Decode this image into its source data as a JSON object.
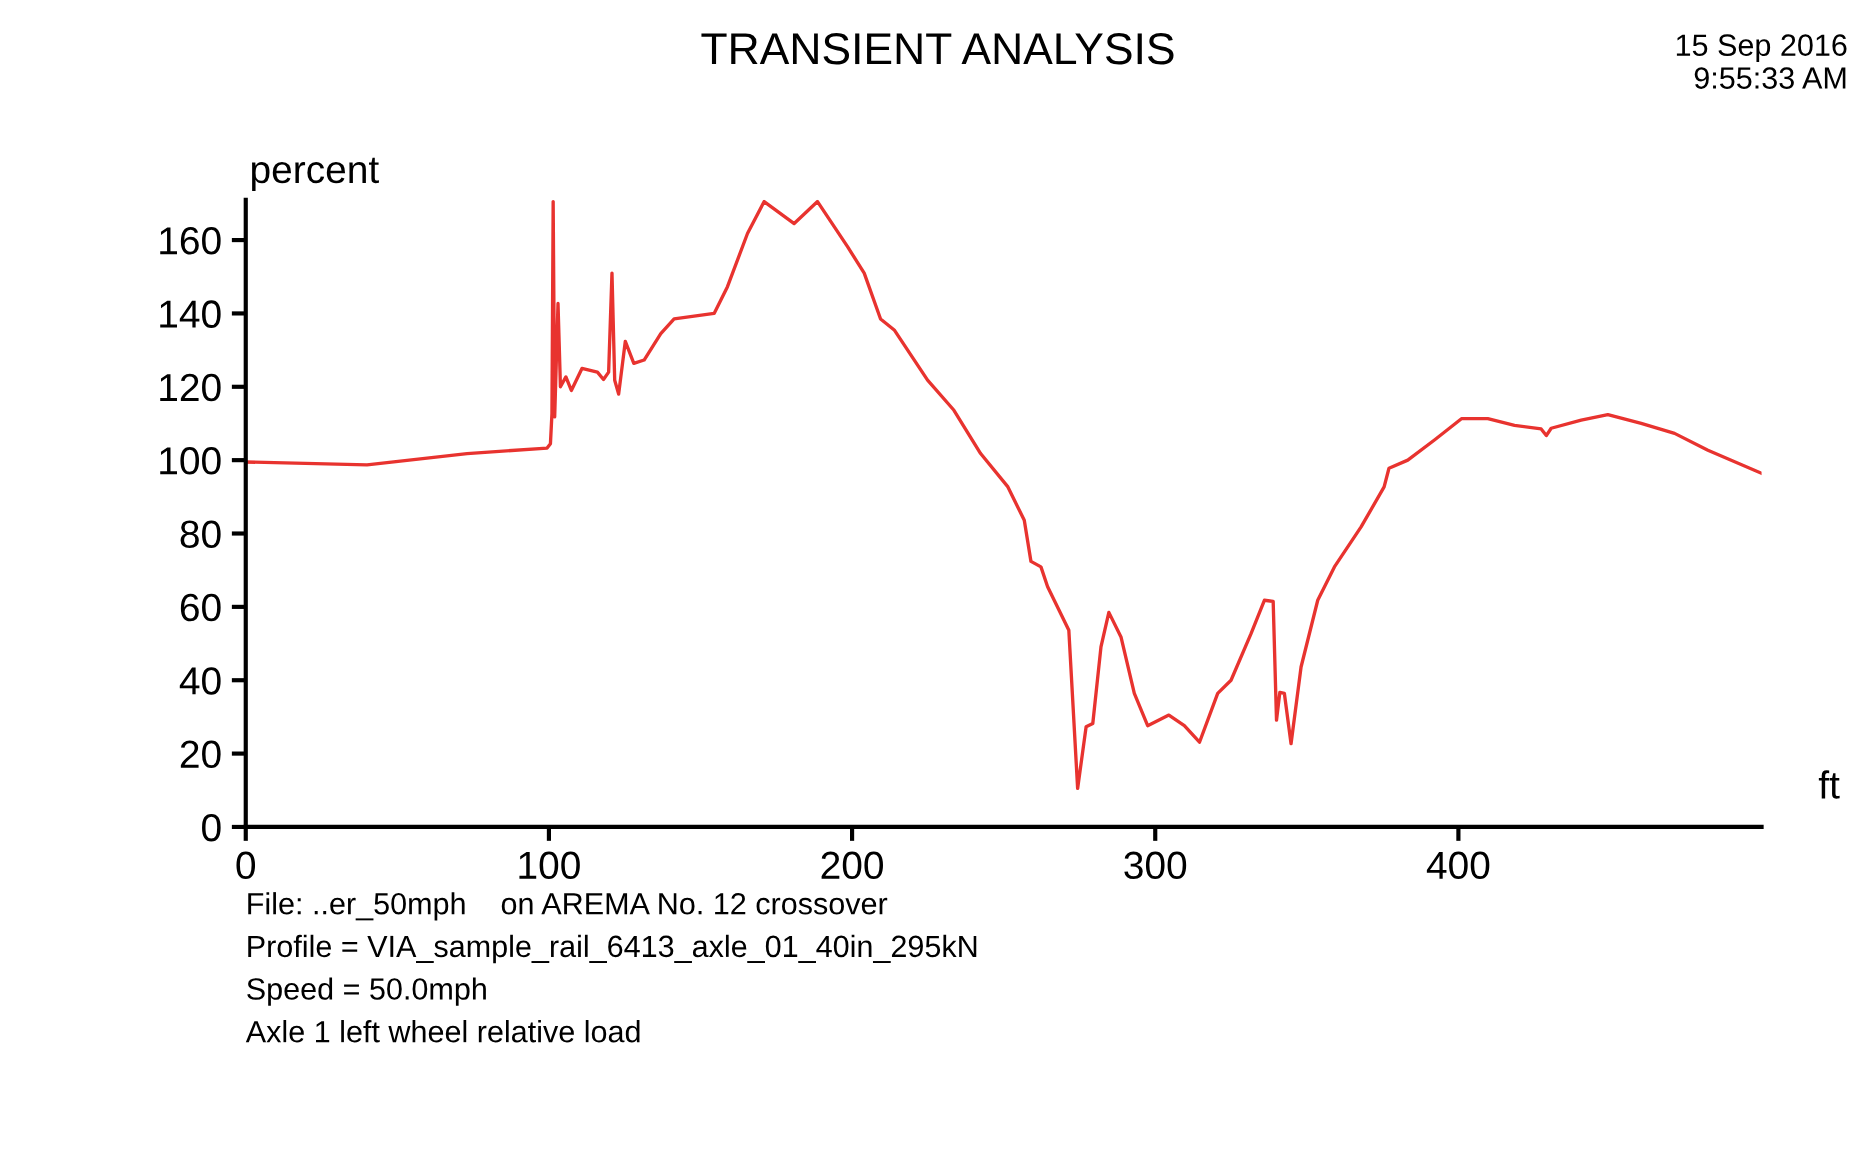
{
  "chart_data": {
    "type": "line",
    "title": "TRANSIENT ANALYSIS",
    "subtitle": "15 Sep 2016\n9:55:33 AM",
    "xlabel": "ft",
    "ylabel": "percent",
    "annotations": [
      "File: ..er_50mph    on AREMA No. 12 crossover",
      "Profile = VIA_sample_rail_6413_axle_01_40in_295kN",
      "Speed = 50.0mph",
      "Axle 1 left wheel relative load"
    ],
    "xlim": [
      0,
      500
    ],
    "ylim": [
      0,
      171
    ],
    "xticks": [
      0,
      100,
      200,
      300,
      400
    ],
    "yticks": [
      0,
      20,
      40,
      60,
      80,
      100,
      120,
      140,
      160
    ],
    "grid": false,
    "legend": false,
    "marker": "none",
    "line_style": "solid",
    "series": [
      {
        "color": "#e8332f",
        "x": [
          0,
          40,
          73,
          99.4,
          100.5,
          101,
          101.4,
          101.9,
          103,
          103.8,
          105.6,
          107.4,
          110.9,
          116,
          118,
          119.7,
          120.8,
          121.7,
          123,
          125.2,
          128,
          131.4,
          136.9,
          141.3,
          154.5,
          158.9,
          165.5,
          171,
          180.9,
          188.6,
          198.5,
          204,
          209.4,
          213.9,
          224.9,
          233.6,
          242.4,
          251.4,
          256.8,
          259,
          262.3,
          264.5,
          271.5,
          274.4,
          277.2,
          279.4,
          282.1,
          284.7,
          288.7,
          293.1,
          297.5,
          304.5,
          309.6,
          314.6,
          320.6,
          325,
          331.6,
          336,
          338.9,
          340,
          341.1,
          342.6,
          344.8,
          348.1,
          353.6,
          359.1,
          367.9,
          375.5,
          377.1,
          383.3,
          392.1,
          401,
          409.7,
          418.5,
          427.3,
          429,
          430.6,
          440.5,
          449.3,
          460.3,
          471.3,
          482.3,
          500
        ],
        "values": [
          99.5,
          98.7,
          101.8,
          103.3,
          104.5,
          112.7,
          170.5,
          111.8,
          142.7,
          120,
          122.7,
          119,
          125,
          124,
          122,
          124,
          151,
          121.8,
          118,
          132.4,
          126.4,
          127.3,
          134.5,
          138.5,
          140,
          147.3,
          161.8,
          170.5,
          164.5,
          170.5,
          158.2,
          151,
          138.5,
          135.5,
          121.8,
          113.6,
          101.8,
          92.7,
          83.6,
          72.4,
          70.9,
          65.5,
          53.6,
          10.5,
          27.3,
          28.2,
          49.1,
          58.5,
          51.8,
          36.4,
          27.6,
          30.5,
          27.6,
          23.1,
          36.4,
          40,
          52.7,
          61.8,
          61.5,
          29.1,
          36.7,
          36.4,
          22.7,
          43.6,
          61.8,
          70.9,
          81.8,
          92.7,
          97.8,
          100,
          105.5,
          111.3,
          111.3,
          109.5,
          108.5,
          106.7,
          108.7,
          110.9,
          112.4,
          110,
          107.3,
          102.7,
          96.4
        ]
      }
    ]
  }
}
